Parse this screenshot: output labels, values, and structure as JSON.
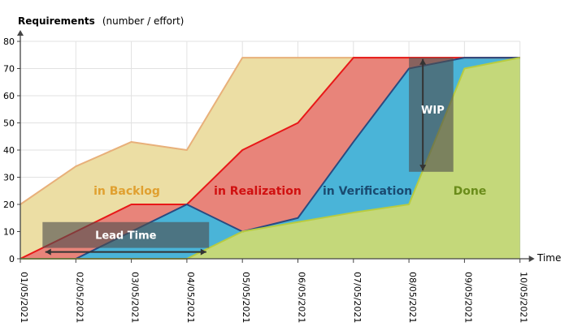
{
  "chart_data": {
    "type": "area",
    "title": "",
    "ylabel": "Requirements",
    "ylabel_suffix": "(number / effort)",
    "xlabel": "Time",
    "ylim": [
      0,
      80
    ],
    "yticks": [
      0,
      10,
      20,
      30,
      40,
      50,
      60,
      70,
      80
    ],
    "grid": true,
    "categories": [
      "01/05/2021",
      "02/05/2021",
      "03/05/2021",
      "04/05/2021",
      "05/05/2021",
      "06/05/2021",
      "07/05/2021",
      "08/05/2021",
      "09/05/2021",
      "10/05/2021"
    ],
    "series": [
      {
        "name": "in Backlog",
        "fill": "#ecdea4",
        "stroke": "#e8b07a",
        "label_color": "#e0a030",
        "values": [
          20,
          34,
          43,
          40,
          74,
          74,
          74,
          74,
          74,
          74
        ]
      },
      {
        "name": "in Realization",
        "fill": "#e8847a",
        "stroke": "#e81818",
        "label_color": "#d01010",
        "values": [
          0,
          10,
          20,
          20,
          40,
          50,
          74,
          74,
          74,
          74
        ]
      },
      {
        "name": "in Verification",
        "fill": "#4ab4d8",
        "stroke": "#2a4a80",
        "label_color": "#1a4a70",
        "values": [
          0,
          0,
          10,
          20,
          10,
          15,
          43,
          70,
          74,
          74
        ]
      },
      {
        "name": "Done",
        "fill": "#c4d87a",
        "stroke": "#b8cc40",
        "label_color": "#6a8c1a",
        "values": [
          0,
          0,
          0,
          0,
          10,
          13.5,
          17,
          20,
          70,
          74
        ]
      }
    ],
    "annotations": [
      {
        "label": "Lead Time",
        "kind": "horizontal",
        "y": 2.5,
        "x_from": 0.45,
        "x_to": 3.35,
        "box_y": [
          4,
          13.5
        ],
        "box_x": [
          0.4,
          3.4
        ]
      },
      {
        "label": "WIP",
        "kind": "vertical",
        "x": 7.25,
        "y_from": 32.5,
        "y_to": 73.5,
        "box_x": [
          7.0,
          7.8
        ],
        "box_y": [
          32,
          74
        ]
      }
    ]
  }
}
